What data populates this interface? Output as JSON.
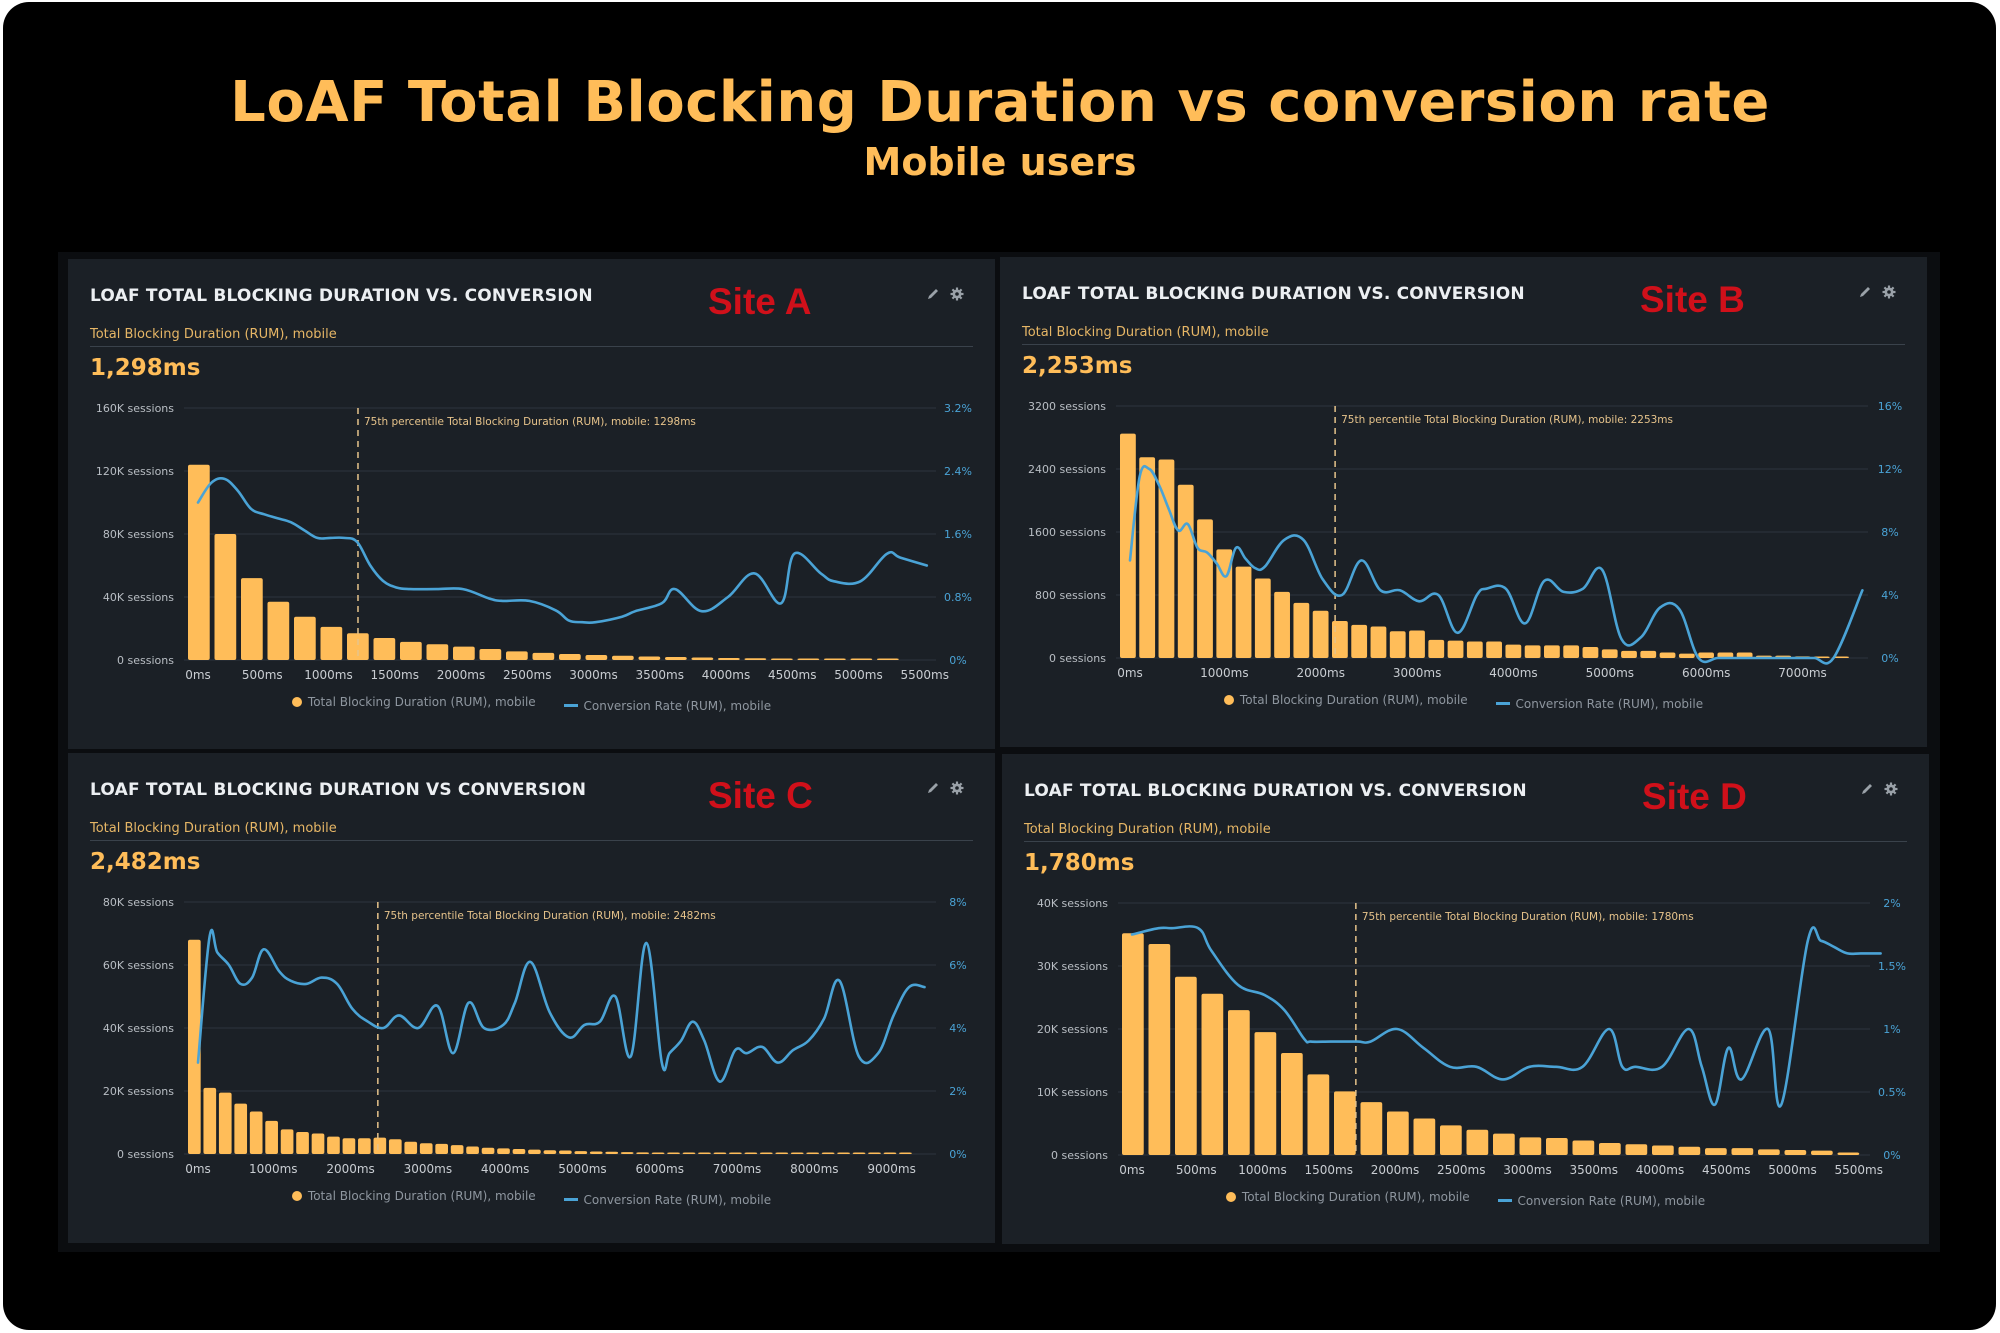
{
  "page": {
    "title": "LoAF Total Blocking Duration vs conversion rate",
    "subtitle": "Mobile users"
  },
  "colors": {
    "bars": "#ffbd59",
    "line": "#4aa3d6",
    "site_label": "#d0101a",
    "title": "#ffbd59",
    "panel_bg": "#1b2026"
  },
  "icons": {
    "edit": "pencil-icon",
    "settings": "gear-icon"
  },
  "legend": {
    "bars": "Total Blocking Duration (RUM), mobile",
    "line": "Conversion Rate (RUM), mobile"
  },
  "chart_data": [
    {
      "type": "bar+line",
      "panel_title": "LOAF TOTAL BLOCKING DURATION VS. CONVERSION",
      "site": "Site A",
      "metric_label": "Total Blocking Duration (RUM), mobile",
      "metric_value": "1,298ms",
      "annotation": "75th percentile Total Blocking Duration (RUM), mobile: 1298ms",
      "p75_ms": 1298,
      "x_range_ms": [
        0,
        5600
      ],
      "bin_ms": 200,
      "y_left": {
        "max": 160000,
        "ticks": [
          "0 sessions",
          "40K sessions",
          "80K sessions",
          "120K sessions",
          "160K sessions"
        ]
      },
      "y_right": {
        "max": 3.2,
        "ticks": [
          "0%",
          "0.8%",
          "1.6%",
          "2.4%",
          "3.2%"
        ]
      },
      "x_ticks": [
        "0ms",
        "500ms",
        "1000ms",
        "1500ms",
        "2000ms",
        "2500ms",
        "3000ms",
        "3500ms",
        "4000ms",
        "4500ms",
        "5000ms",
        "5500ms"
      ],
      "x_tick_values": [
        0,
        500,
        1000,
        1500,
        2000,
        2500,
        3000,
        3500,
        4000,
        4500,
        5000,
        5500
      ],
      "bars_x": [
        0,
        200,
        400,
        600,
        800,
        1000,
        1200,
        1400,
        1600,
        1800,
        2000,
        2200,
        2400,
        2600,
        2800,
        3000,
        3200,
        3400,
        3600,
        3800,
        4000,
        4200,
        4400,
        4600,
        4800,
        5000,
        5200
      ],
      "bars_sessions": [
        124000,
        80000,
        52000,
        37000,
        27500,
        21000,
        17000,
        14000,
        11500,
        10000,
        8500,
        7000,
        5500,
        4500,
        3800,
        3200,
        2700,
        2200,
        1900,
        1600,
        1300,
        1100,
        900,
        700,
        600,
        500,
        400
      ],
      "line_x": [
        0,
        100,
        200,
        300,
        400,
        500,
        600,
        700,
        800,
        900,
        1000,
        1100,
        1200,
        1300,
        1400,
        1500,
        1600,
        1800,
        2000,
        2200,
        2300,
        2500,
        2700,
        2800,
        2900,
        3000,
        3200,
        3300,
        3500,
        3600,
        3800,
        4000,
        4200,
        4400,
        4500,
        4700,
        4800,
        5000,
        5200,
        5300,
        5500
      ],
      "line_pct": [
        2.0,
        2.25,
        2.3,
        2.15,
        1.92,
        1.85,
        1.8,
        1.75,
        1.65,
        1.55,
        1.55,
        1.55,
        1.5,
        1.2,
        1.0,
        0.92,
        0.9,
        0.9,
        0.9,
        0.78,
        0.75,
        0.75,
        0.63,
        0.5,
        0.48,
        0.48,
        0.55,
        0.62,
        0.72,
        0.9,
        0.62,
        0.8,
        1.1,
        0.72,
        1.35,
        1.1,
        1.0,
        1.0,
        1.35,
        1.3,
        1.2
      ]
    },
    {
      "type": "bar+line",
      "panel_title": "LOAF TOTAL BLOCKING DURATION VS. CONVERSION",
      "site": "Site B",
      "metric_label": "Total Blocking Duration (RUM), mobile",
      "metric_value": "2,253ms",
      "annotation": "75th percentile Total Blocking Duration (RUM), mobile: 2253ms",
      "p75_ms": 2253,
      "x_range_ms": [
        0,
        7700
      ],
      "bin_ms": 200,
      "y_left": {
        "max": 3200,
        "ticks": [
          "0 sessions",
          "800 sessions",
          "1600 sessions",
          "2400 sessions",
          "3200 sessions"
        ]
      },
      "y_right": {
        "max": 16,
        "ticks": [
          "0%",
          "4%",
          "8%",
          "12%",
          "16%"
        ]
      },
      "x_ticks": [
        "0ms",
        "1000ms",
        "2000ms",
        "3000ms",
        "4000ms",
        "5000ms",
        "6000ms",
        "7000ms"
      ],
      "x_tick_values": [
        0,
        1000,
        2000,
        3000,
        4000,
        5000,
        6000,
        7000
      ],
      "bars_x": [
        0,
        200,
        400,
        600,
        800,
        1000,
        1200,
        1400,
        1600,
        1800,
        2000,
        2200,
        2400,
        2600,
        2800,
        3000,
        3200,
        3400,
        3600,
        3800,
        4000,
        4200,
        4400,
        4600,
        4800,
        5000,
        5200,
        5400,
        5600,
        5800,
        6000,
        6200,
        6400,
        6600,
        6800,
        7000,
        7200,
        7400
      ],
      "bars_sessions": [
        2850,
        2550,
        2520,
        2200,
        1760,
        1380,
        1160,
        1010,
        840,
        700,
        600,
        470,
        420,
        400,
        340,
        350,
        230,
        220,
        210,
        210,
        170,
        160,
        160,
        160,
        140,
        110,
        90,
        90,
        70,
        55,
        70,
        70,
        70,
        30,
        30,
        20,
        15,
        10
      ],
      "line_x": [
        0,
        100,
        200,
        300,
        400,
        500,
        600,
        700,
        800,
        900,
        1000,
        1100,
        1200,
        1300,
        1400,
        1600,
        1800,
        2000,
        2200,
        2400,
        2600,
        2800,
        3000,
        3200,
        3400,
        3600,
        3700,
        3900,
        4100,
        4300,
        4500,
        4700,
        4900,
        5100,
        5300,
        5500,
        5700,
        5900,
        6100,
        6300,
        6500,
        6700,
        6900,
        7100,
        7300,
        7600
      ],
      "line_pct": [
        6.2,
        11.5,
        12.0,
        11.0,
        9.5,
        8.1,
        8.5,
        7.0,
        6.7,
        6.0,
        5.2,
        7.0,
        6.3,
        5.7,
        5.8,
        7.5,
        7.5,
        5.0,
        4.0,
        6.2,
        4.3,
        4.3,
        3.6,
        4.0,
        1.6,
        4.0,
        4.4,
        4.4,
        2.2,
        4.9,
        4.2,
        4.4,
        5.6,
        1.2,
        1.3,
        3.2,
        3.1,
        0,
        0,
        0,
        0,
        0,
        0,
        0,
        0,
        4.3
      ]
    },
    {
      "type": "bar+line",
      "panel_title": "LOAF TOTAL BLOCKING DURATION VS CONVERSION",
      "site": "Site C",
      "metric_label": "Total Blocking Duration (RUM), mobile",
      "metric_value": "2,482ms",
      "annotation": "75th percentile Total Blocking Duration (RUM), mobile: 2482ms",
      "p75_ms": 2482,
      "x_range_ms": [
        0,
        9600
      ],
      "bin_ms": 200,
      "y_left": {
        "max": 80000,
        "ticks": [
          "0 sessions",
          "20K sessions",
          "40K sessions",
          "60K sessions",
          "80K sessions"
        ]
      },
      "y_right": {
        "max": 8,
        "ticks": [
          "0%",
          "2%",
          "4%",
          "6%",
          "8%"
        ]
      },
      "x_ticks": [
        "0ms",
        "1000ms",
        "2000ms",
        "3000ms",
        "4000ms",
        "5000ms",
        "6000ms",
        "7000ms",
        "8000ms",
        "9000ms"
      ],
      "x_tick_values": [
        0,
        1000,
        2000,
        3000,
        4000,
        5000,
        6000,
        7000,
        8000,
        9000
      ],
      "bars_x": [
        0,
        200,
        400,
        600,
        800,
        1000,
        1200,
        1400,
        1600,
        1800,
        2000,
        2200,
        2400,
        2600,
        2800,
        3000,
        3200,
        3400,
        3600,
        3800,
        4000,
        4200,
        4400,
        4600,
        4800,
        5000,
        5200,
        5400,
        5600,
        5800,
        6000,
        6200,
        6400,
        6600,
        6800,
        7000,
        7200,
        7400,
        7600,
        7800,
        8000,
        8200,
        8400,
        8600,
        8800,
        9000,
        9200
      ],
      "bars_sessions": [
        68000,
        21000,
        19500,
        16000,
        13500,
        10500,
        7800,
        7000,
        6500,
        5500,
        5000,
        5000,
        5200,
        4700,
        3900,
        3400,
        3200,
        2800,
        2400,
        2000,
        1800,
        1600,
        1400,
        1200,
        1100,
        900,
        800,
        700,
        600,
        500,
        450,
        400,
        380,
        350,
        320,
        300,
        280,
        260,
        240,
        220,
        200,
        180,
        160,
        150,
        140,
        130,
        120
      ],
      "line_x": [
        0,
        150,
        250,
        400,
        550,
        700,
        850,
        1050,
        1200,
        1400,
        1600,
        1800,
        2000,
        2200,
        2400,
        2600,
        2850,
        3100,
        3300,
        3500,
        3700,
        3950,
        4100,
        4300,
        4550,
        4800,
        5000,
        5200,
        5400,
        5600,
        5800,
        6000,
        6100,
        6250,
        6400,
        6550,
        6750,
        6950,
        7100,
        7300,
        7500,
        7700,
        7900,
        8100,
        8300,
        8550,
        8800,
        9000,
        9200,
        9400
      ],
      "line_pct": [
        2.9,
        6.9,
        6.4,
        6.0,
        5.4,
        5.6,
        6.5,
        5.8,
        5.5,
        5.4,
        5.6,
        5.4,
        4.6,
        4.2,
        4.0,
        4.4,
        4.0,
        4.7,
        3.2,
        4.8,
        4.0,
        4.1,
        4.8,
        6.1,
        4.5,
        3.7,
        4.1,
        4.2,
        5.0,
        3.1,
        6.7,
        2.9,
        3.2,
        3.6,
        4.2,
        3.6,
        2.3,
        3.3,
        3.2,
        3.4,
        2.9,
        3.3,
        3.6,
        4.3,
        5.5,
        3.1,
        3.2,
        4.4,
        5.3,
        5.3
      ]
    },
    {
      "type": "bar+line",
      "panel_title": "LOAF TOTAL BLOCKING DURATION VS. CONVERSION",
      "site": "Site D",
      "metric_label": "Total Blocking Duration (RUM), mobile",
      "metric_value": "1,780ms",
      "annotation": "75th percentile Total Blocking Duration (RUM), mobile: 1780ms",
      "p75_ms": 1780,
      "x_range_ms": [
        0,
        5600
      ],
      "bin_ms": 200,
      "y_left": {
        "max": 40000,
        "ticks": [
          "0 sessions",
          "10K sessions",
          "20K sessions",
          "30K sessions",
          "40K sessions"
        ]
      },
      "y_right": {
        "max": 2,
        "ticks": [
          "0%",
          "0.5%",
          "1%",
          "1.5%",
          "2%"
        ]
      },
      "x_ticks": [
        "0ms",
        "500ms",
        "1000ms",
        "1500ms",
        "2000ms",
        "2500ms",
        "3000ms",
        "3500ms",
        "4000ms",
        "4500ms",
        "5000ms",
        "5500ms"
      ],
      "x_tick_values": [
        0,
        500,
        1000,
        1500,
        2000,
        2500,
        3000,
        3500,
        4000,
        4500,
        5000,
        5500
      ],
      "bars_x": [
        0,
        200,
        400,
        600,
        800,
        1000,
        1200,
        1400,
        1600,
        1800,
        2000,
        2200,
        2400,
        2600,
        2800,
        3000,
        3200,
        3400,
        3600,
        3800,
        4000,
        4200,
        4400,
        4600,
        4800,
        5000,
        5200,
        5400
      ],
      "bars_sessions": [
        35200,
        33500,
        28300,
        25600,
        23000,
        19500,
        16200,
        12800,
        10100,
        8400,
        6900,
        5800,
        4700,
        4000,
        3400,
        2800,
        2700,
        2300,
        1900,
        1700,
        1500,
        1300,
        1100,
        1100,
        900,
        800,
        700,
        400
      ],
      "line_x": [
        0,
        200,
        300,
        500,
        600,
        800,
        1000,
        1150,
        1300,
        1350,
        1500,
        1700,
        1800,
        2000,
        2200,
        2400,
        2600,
        2800,
        3000,
        3200,
        3400,
        3600,
        3700,
        3800,
        4000,
        4200,
        4300,
        4400,
        4500,
        4600,
        4800,
        4900,
        5100,
        5200,
        5300,
        5400,
        5500,
        5650
      ],
      "line_pct": [
        1.75,
        1.8,
        1.8,
        1.8,
        1.62,
        1.35,
        1.27,
        1.15,
        0.92,
        0.9,
        0.9,
        0.9,
        0.9,
        1.0,
        0.85,
        0.7,
        0.7,
        0.6,
        0.7,
        0.7,
        0.7,
        1.0,
        0.7,
        0.7,
        0.7,
        1.0,
        0.7,
        0.4,
        0.85,
        0.6,
        1.0,
        0.4,
        1.7,
        1.7,
        1.65,
        1.6,
        1.6,
        1.6
      ]
    }
  ]
}
